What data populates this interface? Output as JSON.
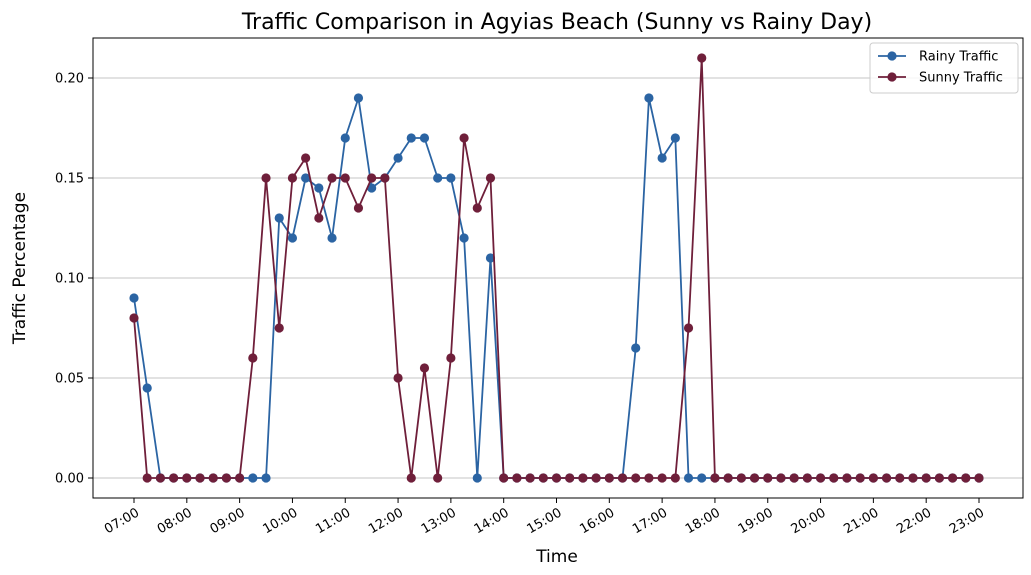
{
  "chart_data": {
    "type": "line",
    "title": "Traffic Comparison in Agyias Beach (Sunny vs Rainy Day)",
    "xlabel": "Time",
    "ylabel": "Traffic Percentage",
    "ylim": [
      -0.01,
      0.22
    ],
    "yticks": [
      0.0,
      0.05,
      0.1,
      0.15,
      0.2
    ],
    "ytick_labels": [
      "0.00",
      "0.05",
      "0.10",
      "0.15",
      "0.20"
    ],
    "xticks": [
      "07:00",
      "08:00",
      "09:00",
      "10:00",
      "11:00",
      "12:00",
      "13:00",
      "14:00",
      "15:00",
      "16:00",
      "17:00",
      "18:00",
      "19:00",
      "20:00",
      "21:00",
      "22:00",
      "23:00"
    ],
    "grid": "horizontal",
    "legend_position": "top-right",
    "x": [
      "07:00",
      "07:15",
      "07:30",
      "07:45",
      "08:00",
      "08:15",
      "08:30",
      "08:45",
      "09:00",
      "09:15",
      "09:30",
      "09:45",
      "10:00",
      "10:15",
      "10:30",
      "10:45",
      "11:00",
      "11:15",
      "11:30",
      "11:45",
      "12:00",
      "12:15",
      "12:30",
      "12:45",
      "13:00",
      "13:15",
      "13:30",
      "13:45",
      "14:00",
      "14:15",
      "14:30",
      "14:45",
      "15:00",
      "15:15",
      "15:30",
      "15:45",
      "16:00",
      "16:15",
      "16:30",
      "16:45",
      "17:00",
      "17:15",
      "17:30",
      "17:45",
      "18:00",
      "18:15",
      "18:30",
      "18:45",
      "19:00",
      "19:15",
      "19:30",
      "19:45",
      "20:00",
      "20:15",
      "20:30",
      "20:45",
      "21:00",
      "21:15",
      "21:30",
      "21:45",
      "22:00",
      "22:15",
      "22:30",
      "22:45",
      "23:00"
    ],
    "series": [
      {
        "name": "Rainy Traffic",
        "color": "#2b64a3",
        "values": [
          0.09,
          0.045,
          0,
          0,
          0,
          0,
          0,
          0,
          0,
          0,
          0,
          0.13,
          0.12,
          0.15,
          0.145,
          0.12,
          0.17,
          0.19,
          0.145,
          0.15,
          0.16,
          0.17,
          0.17,
          0.15,
          0.15,
          0.12,
          0,
          0.11,
          0,
          0,
          0,
          0,
          0,
          0,
          0,
          0,
          0,
          0,
          0.065,
          0.19,
          0.16,
          0.17,
          0,
          0,
          0,
          0,
          0,
          0,
          0,
          0,
          0,
          0,
          0,
          0,
          0,
          0,
          0,
          0,
          0,
          0,
          0,
          0,
          0,
          0,
          0
        ]
      },
      {
        "name": "Sunny Traffic",
        "color": "#6f1f3a",
        "values": [
          0.08,
          0,
          0,
          0,
          0,
          0,
          0,
          0,
          0,
          0.06,
          0.15,
          0.075,
          0.15,
          0.16,
          0.13,
          0.15,
          0.15,
          0.135,
          0.15,
          0.15,
          0.05,
          0,
          0.055,
          0,
          0.06,
          0.17,
          0.135,
          0.15,
          0,
          0,
          0,
          0,
          0,
          0,
          0,
          0,
          0,
          0,
          0,
          0,
          0,
          0,
          0.075,
          0.21,
          0,
          0,
          0,
          0,
          0,
          0,
          0,
          0,
          0,
          0,
          0,
          0,
          0,
          0,
          0,
          0,
          0,
          0,
          0,
          0,
          0
        ]
      }
    ]
  }
}
